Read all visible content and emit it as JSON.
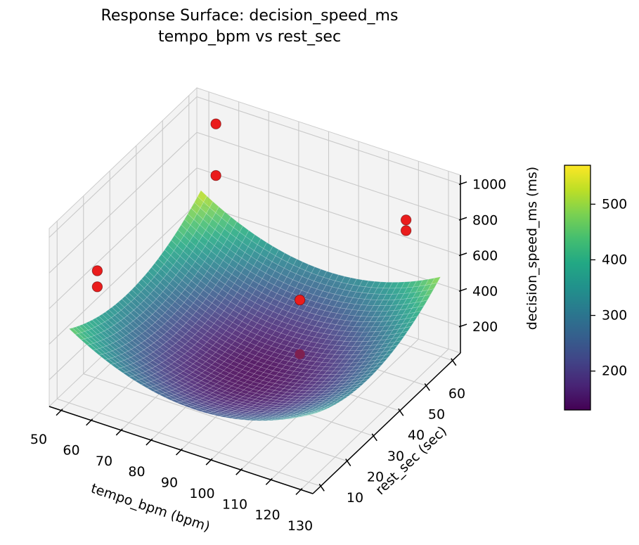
{
  "title": {
    "line1": "Response Surface: decision_speed_ms",
    "line2": "tempo_bpm vs rest_sec"
  },
  "chart_data": {
    "type": "surface3d",
    "title": "Response Surface: decision_speed_ms — tempo_bpm vs rest_sec",
    "xlabel": "tempo_bpm (bpm)",
    "ylabel": "rest_sec (sec)",
    "zlabel": "decision_speed_ms (ms)",
    "x_ticks": [
      50,
      60,
      70,
      80,
      90,
      100,
      110,
      120,
      130
    ],
    "y_ticks": [
      10,
      20,
      30,
      40,
      50,
      60
    ],
    "z_ticks": [
      200,
      400,
      600,
      800,
      1000
    ],
    "x_range_plotted": [
      50,
      130
    ],
    "y_range_plotted": [
      10,
      60
    ],
    "z_axis_range": [
      50,
      1050
    ],
    "colormap": "viridis",
    "grid": true,
    "surface": {
      "description": "Convex bowl-shaped fitted response surface; minimum ~130 ms near tempo~92 bpm and rest~32 sec, rising to yellow peak ~540-570 ms at the (tempo=50, rest=60) corner",
      "model": "z = 130 + 0.125*(tempo-92)^2 + 0.24*(rest-32)^2",
      "z0": 130,
      "a": 0.125,
      "b": 0.24,
      "t0": 92,
      "r0": 32,
      "z_min": 130,
      "z_max": 570,
      "mesh_divisions": 40
    },
    "colorbar": {
      "ticks": [
        200,
        300,
        400,
        500
      ],
      "vmin": 130,
      "vmax": 570
    },
    "scatter_points": [
      {
        "tempo": 55,
        "rest": 60,
        "value": 940,
        "color": "red",
        "occluded": false
      },
      {
        "tempo": 55,
        "rest": 60,
        "value": 650,
        "color": "red",
        "occluded": false
      },
      {
        "tempo": 122,
        "rest": 56,
        "value": 830,
        "color": "red",
        "occluded": false
      },
      {
        "tempo": 122,
        "rest": 56,
        "value": 770,
        "color": "red",
        "occluded": false
      },
      {
        "tempo": 55,
        "rest": 15,
        "value": 750,
        "color": "red",
        "occluded": false
      },
      {
        "tempo": 55,
        "rest": 15,
        "value": 660,
        "color": "red",
        "occluded": false
      },
      {
        "tempo": 98,
        "rest": 43,
        "value": 430,
        "color": "red",
        "occluded": false
      },
      {
        "tempo": 98,
        "rest": 43,
        "value": 125,
        "color": "dark red (behind surface)",
        "occluded": true
      }
    ]
  },
  "colors": {
    "background": "#ffffff",
    "text": "#000000",
    "axis": "#000000",
    "pane": "#f3f3f3",
    "pane_edge": "#cccccc",
    "grid": "#c9c9c9",
    "mesh_line": "rgba(255,255,255,0.30)",
    "scatter": "#ea1c1c",
    "scatter_edge": "rgba(90,0,0,0.55)",
    "occluded_scatter": "#7d2050",
    "viridis_min": "#440154",
    "viridis_max": "#fde725"
  }
}
